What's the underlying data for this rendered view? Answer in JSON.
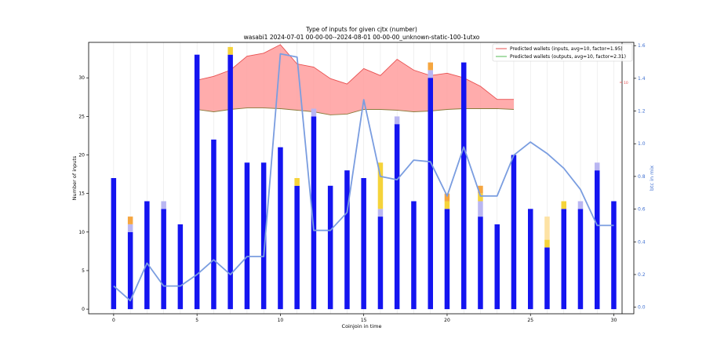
{
  "chart_data": {
    "type": "bar",
    "title": "Type of inputs for given cjtx (number)",
    "subtitle": "wasabi1 2024-07-01 00-00-00--2024-08-01 00-00-00_unknown-static-100-1utxo",
    "xlabel": "Coinjoin in time",
    "ylabel": "Number of inputs",
    "y2label": "btc in mix",
    "xlim": [
      -1.5,
      31.2
    ],
    "ylim": [
      -0.6,
      34.6
    ],
    "y2lim": [
      -0.04,
      1.62
    ],
    "x_ticks": [
      "0",
      "5",
      "10",
      "15",
      "20",
      "25",
      "30"
    ],
    "y_ticks": [
      "0",
      "5",
      "10",
      "15",
      "20",
      "25",
      "30"
    ],
    "y2_ticks": [
      "0.0",
      "0.2",
      "0.4",
      "0.6",
      "0.8",
      "1.0",
      "1.2",
      "1.4",
      "1.6"
    ],
    "right_marker": "10",
    "grid": "vertical",
    "legend_position": "top-right",
    "legend": [
      {
        "label": "Predicted wallets (inputs, avg=10, factor=1.95)",
        "color": "#e85050"
      },
      {
        "label": "Predicted wallets (outputs, avg=10, factor=2.31)",
        "color": "#55bb55"
      }
    ],
    "x": [
      0,
      1,
      2,
      3,
      4,
      5,
      6,
      7,
      8,
      9,
      10,
      11,
      12,
      13,
      14,
      15,
      16,
      17,
      18,
      19,
      20,
      21,
      22,
      23,
      24,
      25,
      26,
      27,
      28,
      29,
      30
    ],
    "bar_series": [
      {
        "name": "base",
        "color": "#1414f0",
        "values": [
          17,
          10,
          14,
          13,
          11,
          33,
          22,
          33,
          19,
          19,
          21,
          16,
          25,
          16,
          18,
          17,
          12,
          24,
          14,
          30,
          13,
          32,
          12,
          11,
          20,
          13,
          8,
          13,
          13,
          18,
          14
        ]
      },
      {
        "name": "layer2",
        "color": "#b9b6f2",
        "values": [
          0,
          1,
          0,
          1,
          0,
          0,
          0,
          0,
          0,
          0,
          0,
          0,
          1,
          0,
          0,
          0,
          1,
          1,
          0,
          1,
          0,
          0,
          2,
          0,
          0,
          0,
          0,
          0,
          1,
          1,
          0
        ]
      },
      {
        "name": "layer3",
        "color": "#f5d33a",
        "values": [
          0,
          0,
          0,
          0,
          0,
          0,
          0,
          1,
          0,
          0,
          0,
          1,
          0,
          0,
          0,
          0,
          6,
          0,
          0,
          0,
          1,
          0,
          1,
          0,
          0,
          0,
          1,
          1,
          0,
          0,
          0
        ]
      },
      {
        "name": "layer4",
        "color": "#f5a640",
        "values": [
          0,
          1,
          0,
          0,
          0,
          0,
          0,
          0,
          0,
          0,
          0,
          0,
          0,
          0,
          0,
          0,
          0,
          0,
          0,
          1,
          1,
          0,
          1,
          0,
          0,
          0,
          0,
          0,
          0,
          0,
          0
        ]
      },
      {
        "name": "layer5",
        "color": "#fde2a4",
        "values": [
          0,
          0,
          0,
          0,
          0,
          0,
          0,
          0,
          0,
          0,
          0,
          0,
          0,
          0,
          0,
          0,
          0,
          0,
          0,
          0,
          0,
          0,
          0,
          0,
          0,
          0,
          3,
          0,
          0,
          0,
          0
        ]
      }
    ],
    "band": {
      "x": [
        5,
        6,
        7,
        8,
        9,
        10,
        11,
        12,
        13,
        14,
        15,
        16,
        17,
        18,
        19,
        20,
        21,
        22,
        23,
        24
      ],
      "upper": [
        29.7,
        30.2,
        31.0,
        32.8,
        33.2,
        34.3,
        31.8,
        31.4,
        29.9,
        29.2,
        31.2,
        30.3,
        32.4,
        31.0,
        30.3,
        30.6,
        30.0,
        28.9,
        27.2,
        27.2
      ],
      "lower": [
        25.9,
        25.6,
        25.9,
        26.1,
        26.1,
        26.0,
        25.8,
        25.6,
        25.2,
        25.3,
        25.9,
        25.9,
        25.8,
        25.6,
        25.7,
        25.9,
        26.0,
        26.0,
        26.0,
        25.9
      ],
      "fill": "#ff9e9e",
      "upper_color": "#e85050",
      "lower_color": "#8a7a3a"
    },
    "line_series": {
      "color": "#7a9de0",
      "values": [
        0.13,
        0.04,
        0.27,
        0.13,
        0.13,
        0.2,
        0.29,
        0.2,
        0.31,
        0.31,
        1.55,
        1.53,
        0.47,
        0.47,
        0.58,
        1.27,
        0.8,
        0.78,
        0.9,
        0.89,
        0.68,
        0.98,
        0.68,
        0.68,
        0.93,
        1.01,
        0.94,
        0.85,
        0.72,
        0.5,
        0.5
      ]
    }
  }
}
